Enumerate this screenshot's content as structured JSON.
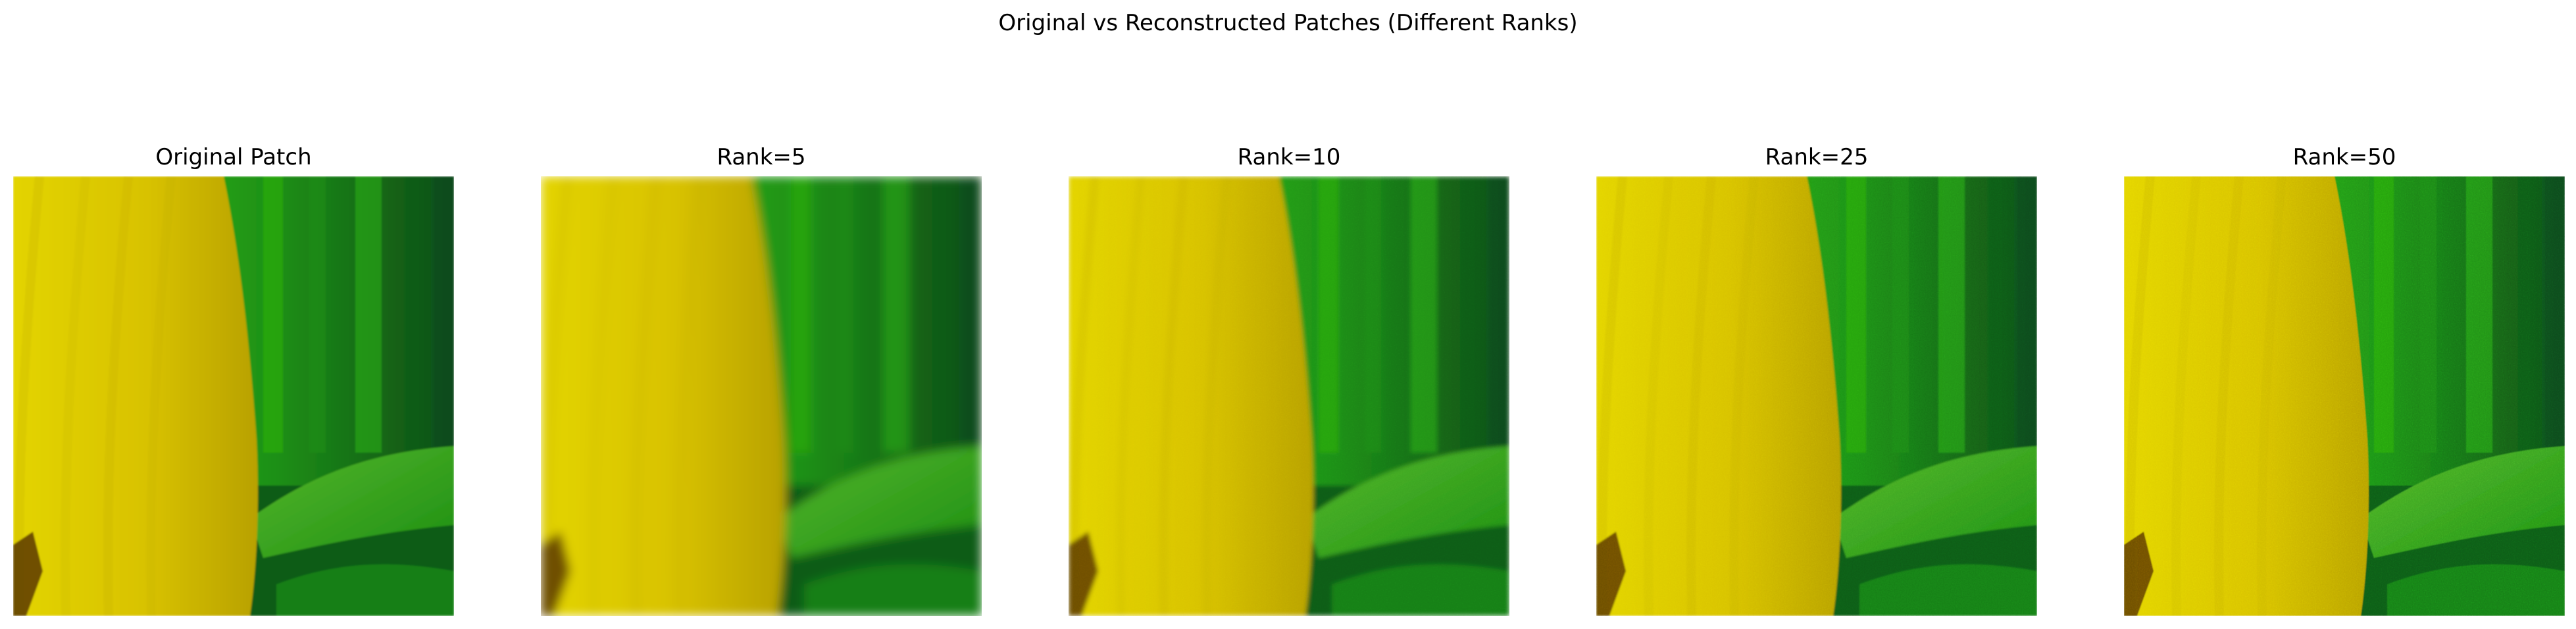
{
  "figure": {
    "title": "Original vs Reconstructed Patches (Different Ranks)"
  },
  "panels": [
    {
      "title": "Original Patch",
      "rank": null,
      "blur": 1.2,
      "noise": 0.0
    },
    {
      "title": "Rank=5",
      "rank": 5,
      "blur": 7.5,
      "noise": 0.0
    },
    {
      "title": "Rank=10",
      "rank": 10,
      "blur": 3.5,
      "noise": 0.12
    },
    {
      "title": "Rank=25",
      "rank": 25,
      "blur": 1.2,
      "noise": 0.22
    },
    {
      "title": "Rank=50",
      "rank": 50,
      "blur": 0.8,
      "noise": 0.3
    }
  ],
  "colors": {
    "banana_light": "#e3d400",
    "banana_mid": "#d8c200",
    "banana_dark": "#b8a100",
    "leaf_bright": "#2fb50f",
    "leaf_mid": "#1d8f13",
    "leaf_dark": "#0c5c19",
    "leaf_deep": "#0d4b1b",
    "lower_leaf": "#56b72c",
    "brown": "#5a3a00"
  }
}
